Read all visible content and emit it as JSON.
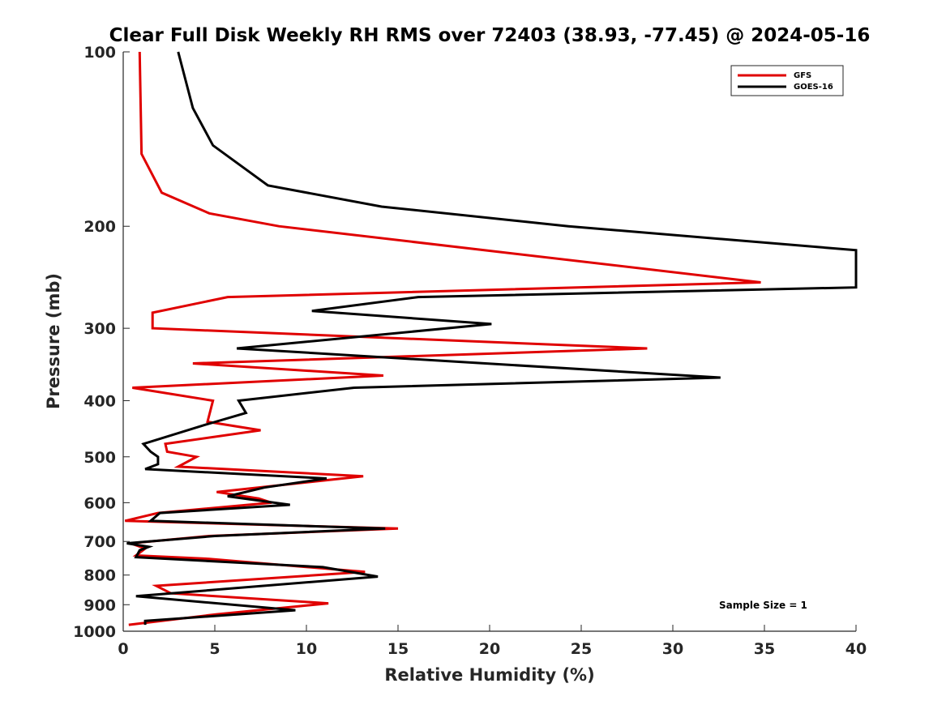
{
  "chart_data": {
    "type": "line",
    "title": "Clear Full Disk Weekly RH RMS over 72403 (38.93, -77.45) @ 2024-05-16",
    "xlabel": "Relative Humidity (%)",
    "ylabel": "Pressure (mb)",
    "xlim": [
      0,
      40
    ],
    "ylim": [
      100,
      1000
    ],
    "yscale": "log",
    "y_reversed": true,
    "xticks": [
      0,
      5,
      10,
      15,
      20,
      25,
      30,
      35,
      40
    ],
    "yticks": [
      100,
      200,
      300,
      400,
      500,
      600,
      700,
      800,
      900,
      1000
    ],
    "grid": false,
    "legend_position": "top-right",
    "annotation": "Sample Size = 1",
    "series": [
      {
        "name": "GFS",
        "color": "#e00000",
        "points": [
          [
            0.9,
            100
          ],
          [
            1.0,
            150
          ],
          [
            2.1,
            175
          ],
          [
            4.7,
            190
          ],
          [
            8.5,
            200
          ],
          [
            34.8,
            250
          ],
          [
            5.7,
            265
          ],
          [
            1.6,
            282
          ],
          [
            1.6,
            300
          ],
          [
            28.6,
            325
          ],
          [
            3.8,
            345
          ],
          [
            14.2,
            362
          ],
          [
            0.5,
            380
          ],
          [
            4.9,
            400
          ],
          [
            4.6,
            435
          ],
          [
            7.5,
            450
          ],
          [
            2.3,
            475
          ],
          [
            2.4,
            490
          ],
          [
            4.0,
            500
          ],
          [
            3.0,
            520
          ],
          [
            13.1,
            540
          ],
          [
            5.1,
            575
          ],
          [
            7.4,
            590
          ],
          [
            8.1,
            600
          ],
          [
            1.9,
            625
          ],
          [
            0.1,
            645
          ],
          [
            15.0,
            665
          ],
          [
            4.7,
            685
          ],
          [
            0.4,
            705
          ],
          [
            1.2,
            720
          ],
          [
            0.7,
            740
          ],
          [
            4.7,
            750
          ],
          [
            13.2,
            790
          ],
          [
            1.8,
            835
          ],
          [
            2.6,
            860
          ],
          [
            11.2,
            895
          ],
          [
            5.1,
            935
          ],
          [
            0.3,
            975
          ]
        ]
      },
      {
        "name": "GOES-16",
        "color": "#000000",
        "points": [
          [
            3.0,
            100
          ],
          [
            3.8,
            125
          ],
          [
            4.9,
            145
          ],
          [
            7.9,
            170
          ],
          [
            14.1,
            185
          ],
          [
            24.3,
            200
          ],
          [
            40.0,
            220
          ],
          [
            40.0,
            255
          ],
          [
            16.1,
            265
          ],
          [
            10.3,
            280
          ],
          [
            20.1,
            295
          ],
          [
            6.2,
            325
          ],
          [
            32.6,
            365
          ],
          [
            12.6,
            380
          ],
          [
            6.3,
            400
          ],
          [
            6.7,
            420
          ],
          [
            4.5,
            440
          ],
          [
            1.1,
            475
          ],
          [
            1.5,
            490
          ],
          [
            1.9,
            500
          ],
          [
            1.9,
            515
          ],
          [
            1.2,
            525
          ],
          [
            11.1,
            545
          ],
          [
            7.7,
            565
          ],
          [
            5.7,
            585
          ],
          [
            9.1,
            605
          ],
          [
            2.0,
            625
          ],
          [
            1.5,
            645
          ],
          [
            14.3,
            665
          ],
          [
            5.0,
            685
          ],
          [
            0.2,
            705
          ],
          [
            1.4,
            715
          ],
          [
            0.9,
            725
          ],
          [
            0.7,
            745
          ],
          [
            10.9,
            775
          ],
          [
            13.9,
            805
          ],
          [
            0.7,
            870
          ],
          [
            9.4,
            920
          ],
          [
            1.2,
            960
          ],
          [
            1.2,
            975
          ]
        ]
      }
    ]
  }
}
